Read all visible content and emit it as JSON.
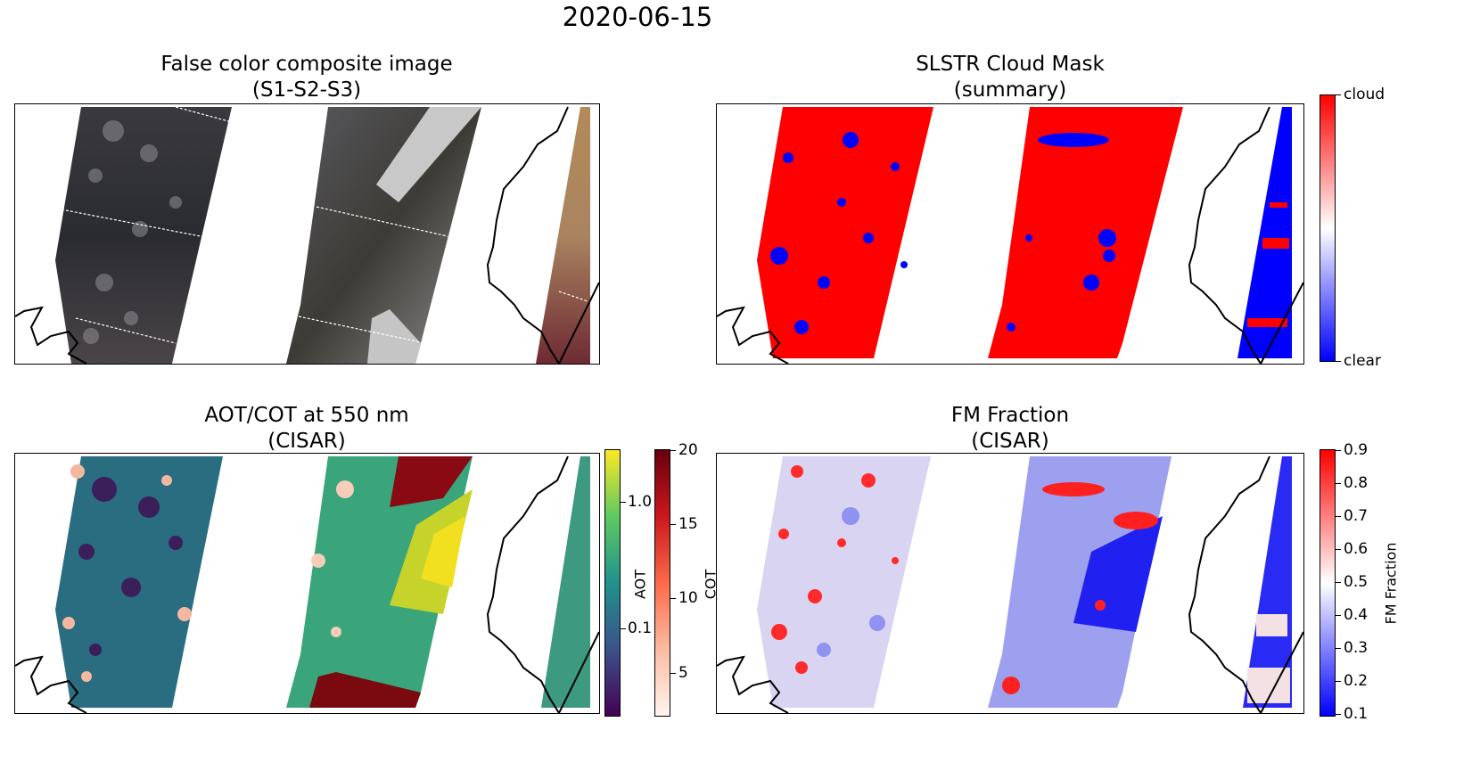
{
  "figure": {
    "suptitle": "2020-06-15"
  },
  "panels": {
    "false_color": {
      "title": "False color composite image",
      "subtitle": "(S1-S2-S3)"
    },
    "cloud_mask": {
      "title": "SLSTR Cloud Mask",
      "subtitle": "(summary)"
    },
    "aot_cot": {
      "title": "AOT/COT at 550 nm",
      "subtitle": "(CISAR)"
    },
    "fm_fraction": {
      "title": "FM Fraction",
      "subtitle": "(CISAR)"
    }
  },
  "colorbars": {
    "cloud_mask": {
      "labels": [
        "cloud",
        "clear"
      ],
      "colormap": "bwr",
      "colors": [
        "#ff0000",
        "#ffffff",
        "#0000ff"
      ]
    },
    "aot": {
      "label": "AOT",
      "scale": "log",
      "ticks": [
        "1.0",
        "0.1"
      ],
      "colormap": "viridis"
    },
    "cot": {
      "label": "COT",
      "range": [
        2,
        20
      ],
      "ticks": [
        "20",
        "15",
        "10",
        "5"
      ],
      "colormap": "Reds"
    },
    "fm": {
      "label": "FM Fraction",
      "range": [
        0.1,
        0.9
      ],
      "ticks": [
        "0.9",
        "0.8",
        "0.7",
        "0.6",
        "0.5",
        "0.4",
        "0.3",
        "0.2",
        "0.1"
      ],
      "colormap": "bwr"
    }
  },
  "chart_data": [
    {
      "type": "heatmap",
      "title": "False color composite image (S1-S2-S3)"
    },
    {
      "type": "heatmap",
      "title": "SLSTR Cloud Mask (summary)",
      "colorbar_labels": [
        "cloud",
        "clear"
      ]
    },
    {
      "type": "heatmap",
      "title": "AOT/COT at 550 nm (CISAR)",
      "colorbars": [
        {
          "label": "AOT",
          "scale": "log",
          "ticks": [
            1.0,
            0.1
          ]
        },
        {
          "label": "COT",
          "range": [
            2,
            20
          ],
          "ticks": [
            20,
            15,
            10,
            5
          ]
        }
      ]
    },
    {
      "type": "heatmap",
      "title": "FM Fraction (CISAR)",
      "colorbar": {
        "label": "FM Fraction",
        "range": [
          0.1,
          0.9
        ],
        "ticks": [
          0.9,
          0.8,
          0.7,
          0.6,
          0.5,
          0.4,
          0.3,
          0.2,
          0.1
        ]
      }
    }
  ]
}
